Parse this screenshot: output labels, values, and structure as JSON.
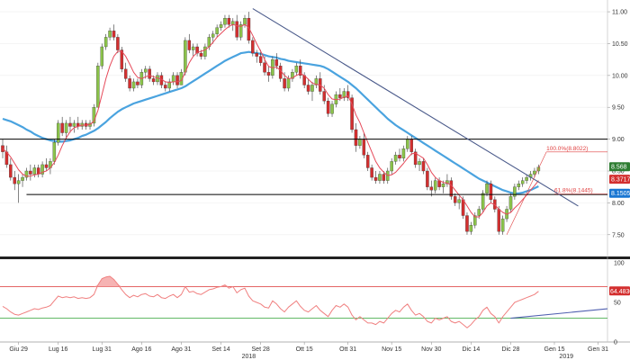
{
  "chart_data": {
    "type": "candlestick",
    "colors": {
      "up": "#8bc34a",
      "down": "#d32f2f",
      "ma_short": "#e64a5a",
      "ma_long": "#4aa3df",
      "rsi": "#f08080",
      "rsi_upper": "#e05050",
      "rsi_lower": "#4caf50",
      "support_line": "#000000",
      "trendline": "#4a5a8a",
      "rsi_trendline": "#5060b0",
      "badge_green": "#2e7d32",
      "badge_red": "#d32f2f",
      "badge_blue": "#1976d2"
    },
    "price_ylim": [
      7.2,
      11.1
    ],
    "price_ticks": [
      "11.00",
      "10.50",
      "10.00",
      "9.50",
      "9.00",
      "8.50",
      "8.00",
      "7.50"
    ],
    "price_tick_values": [
      11.0,
      10.5,
      10.0,
      9.5,
      9.0,
      8.5,
      8.0,
      7.5
    ],
    "rsi_ticks": [
      "100",
      "50",
      "0"
    ],
    "rsi_tick_values": [
      100,
      50,
      0
    ],
    "x_ticks": [
      "Giu 29",
      "Lug 16",
      "Lug 31",
      "Ago 16",
      "Ago 31",
      "Set 14",
      "Set 28",
      "Ott 15",
      "Ott 31",
      "Nov 15",
      "Nov 30",
      "Dic 14",
      "Dic 28",
      "Gen 15",
      "Gen 31"
    ],
    "x_tick_index": [
      4,
      14,
      25,
      35,
      45,
      55,
      65,
      76,
      87,
      98,
      108,
      118,
      128,
      139,
      150
    ],
    "year_labels": [
      {
        "label": "2018",
        "index": 62
      },
      {
        "label": "2019",
        "index": 142
      }
    ],
    "ohlc": [
      [
        8.9,
        9.0,
        8.7,
        8.8
      ],
      [
        8.8,
        8.9,
        8.55,
        8.6
      ],
      [
        8.6,
        8.7,
        8.35,
        8.4
      ],
      [
        8.4,
        8.5,
        8.2,
        8.3
      ],
      [
        8.3,
        8.45,
        8.0,
        8.35
      ],
      [
        8.35,
        8.45,
        8.25,
        8.4
      ],
      [
        8.4,
        8.55,
        8.35,
        8.5
      ],
      [
        8.5,
        8.6,
        8.35,
        8.45
      ],
      [
        8.45,
        8.6,
        8.4,
        8.55
      ],
      [
        8.55,
        8.6,
        8.4,
        8.45
      ],
      [
        8.45,
        8.65,
        8.4,
        8.6
      ],
      [
        8.6,
        8.7,
        8.5,
        8.55
      ],
      [
        8.55,
        8.7,
        8.45,
        8.65
      ],
      [
        8.65,
        9.0,
        8.6,
        8.95
      ],
      [
        8.95,
        9.3,
        8.9,
        9.25
      ],
      [
        9.25,
        9.35,
        9.05,
        9.1
      ],
      [
        9.1,
        9.3,
        9.0,
        9.25
      ],
      [
        9.25,
        9.35,
        9.1,
        9.2
      ],
      [
        9.2,
        9.3,
        9.1,
        9.25
      ],
      [
        9.25,
        9.35,
        9.15,
        9.2
      ],
      [
        9.2,
        9.3,
        9.15,
        9.25
      ],
      [
        9.25,
        9.3,
        9.15,
        9.2
      ],
      [
        9.2,
        9.3,
        9.15,
        9.25
      ],
      [
        9.25,
        9.55,
        9.2,
        9.5
      ],
      [
        9.5,
        10.2,
        9.5,
        10.15
      ],
      [
        10.15,
        10.5,
        10.1,
        10.45
      ],
      [
        10.45,
        10.65,
        10.4,
        10.6
      ],
      [
        10.6,
        10.75,
        10.55,
        10.7
      ],
      [
        10.7,
        10.8,
        10.55,
        10.6
      ],
      [
        10.6,
        10.65,
        10.35,
        10.4
      ],
      [
        10.4,
        10.45,
        10.05,
        10.1
      ],
      [
        10.1,
        10.2,
        9.9,
        9.95
      ],
      [
        9.95,
        10.0,
        9.75,
        9.8
      ],
      [
        9.8,
        9.95,
        9.75,
        9.9
      ],
      [
        9.9,
        9.95,
        9.8,
        9.85
      ],
      [
        9.85,
        10.1,
        9.8,
        10.05
      ],
      [
        10.05,
        10.15,
        9.95,
        10.1
      ],
      [
        10.1,
        10.15,
        9.9,
        9.95
      ],
      [
        9.95,
        10.0,
        9.85,
        9.9
      ],
      [
        9.9,
        10.05,
        9.85,
        10.0
      ],
      [
        10.0,
        10.05,
        9.8,
        9.85
      ],
      [
        9.85,
        9.9,
        9.75,
        9.8
      ],
      [
        9.8,
        9.95,
        9.75,
        9.9
      ],
      [
        9.9,
        10.05,
        9.85,
        10.0
      ],
      [
        10.0,
        10.05,
        9.8,
        9.85
      ],
      [
        9.85,
        10.1,
        9.85,
        10.05
      ],
      [
        10.05,
        10.6,
        10.0,
        10.55
      ],
      [
        10.55,
        10.65,
        10.35,
        10.4
      ],
      [
        10.4,
        10.5,
        10.3,
        10.45
      ],
      [
        10.45,
        10.5,
        10.3,
        10.35
      ],
      [
        10.35,
        10.4,
        10.25,
        10.3
      ],
      [
        10.3,
        10.5,
        10.25,
        10.45
      ],
      [
        10.45,
        10.65,
        10.4,
        10.6
      ],
      [
        10.6,
        10.7,
        10.5,
        10.65
      ],
      [
        10.65,
        10.8,
        10.6,
        10.75
      ],
      [
        10.75,
        10.85,
        10.7,
        10.8
      ],
      [
        10.8,
        10.95,
        10.75,
        10.9
      ],
      [
        10.9,
        10.95,
        10.75,
        10.8
      ],
      [
        10.8,
        10.9,
        10.7,
        10.85
      ],
      [
        10.85,
        10.95,
        10.55,
        10.6
      ],
      [
        10.6,
        10.85,
        10.55,
        10.8
      ],
      [
        10.8,
        10.95,
        10.75,
        10.9
      ],
      [
        10.9,
        11.0,
        10.5,
        10.55
      ],
      [
        10.55,
        10.6,
        10.3,
        10.35
      ],
      [
        10.35,
        10.4,
        10.2,
        10.3
      ],
      [
        10.3,
        10.4,
        10.15,
        10.2
      ],
      [
        10.2,
        10.3,
        10.0,
        10.05
      ],
      [
        10.05,
        10.15,
        9.9,
        10.0
      ],
      [
        10.0,
        10.3,
        9.95,
        10.25
      ],
      [
        10.25,
        10.35,
        10.1,
        10.15
      ],
      [
        10.15,
        10.2,
        9.9,
        9.95
      ],
      [
        9.95,
        10.05,
        9.75,
        9.8
      ],
      [
        9.8,
        10.0,
        9.75,
        9.95
      ],
      [
        9.95,
        10.1,
        9.9,
        10.05
      ],
      [
        10.05,
        10.2,
        10.0,
        10.15
      ],
      [
        10.15,
        10.25,
        9.95,
        10.0
      ],
      [
        10.0,
        10.05,
        9.8,
        9.85
      ],
      [
        9.85,
        9.95,
        9.7,
        9.75
      ],
      [
        9.75,
        9.9,
        9.6,
        9.85
      ],
      [
        9.85,
        10.0,
        9.8,
        9.95
      ],
      [
        9.95,
        10.05,
        9.7,
        9.75
      ],
      [
        9.75,
        9.85,
        9.55,
        9.6
      ],
      [
        9.6,
        9.65,
        9.35,
        9.4
      ],
      [
        9.4,
        9.6,
        9.35,
        9.55
      ],
      [
        9.55,
        9.75,
        9.5,
        9.7
      ],
      [
        9.7,
        9.8,
        9.6,
        9.65
      ],
      [
        9.65,
        9.8,
        9.6,
        9.75
      ],
      [
        9.75,
        9.85,
        9.6,
        9.65
      ],
      [
        9.65,
        9.7,
        9.1,
        9.15
      ],
      [
        9.15,
        9.25,
        8.8,
        8.9
      ],
      [
        8.9,
        9.05,
        8.85,
        9.0
      ],
      [
        9.0,
        9.1,
        8.7,
        8.75
      ],
      [
        8.75,
        8.8,
        8.5,
        8.55
      ],
      [
        8.55,
        8.6,
        8.35,
        8.4
      ],
      [
        8.4,
        8.5,
        8.3,
        8.35
      ],
      [
        8.35,
        8.5,
        8.3,
        8.45
      ],
      [
        8.45,
        8.5,
        8.3,
        8.35
      ],
      [
        8.35,
        8.55,
        8.3,
        8.5
      ],
      [
        8.5,
        8.7,
        8.45,
        8.65
      ],
      [
        8.65,
        8.8,
        8.6,
        8.75
      ],
      [
        8.75,
        8.85,
        8.65,
        8.7
      ],
      [
        8.7,
        8.9,
        8.65,
        8.85
      ],
      [
        8.85,
        9.05,
        8.8,
        9.0
      ],
      [
        9.0,
        9.05,
        8.75,
        8.8
      ],
      [
        8.8,
        8.85,
        8.55,
        8.6
      ],
      [
        8.6,
        8.7,
        8.5,
        8.65
      ],
      [
        8.65,
        8.7,
        8.45,
        8.5
      ],
      [
        8.5,
        8.55,
        8.2,
        8.25
      ],
      [
        8.25,
        8.35,
        8.1,
        8.2
      ],
      [
        8.2,
        8.4,
        8.15,
        8.35
      ],
      [
        8.35,
        8.4,
        8.2,
        8.25
      ],
      [
        8.25,
        8.35,
        8.15,
        8.3
      ],
      [
        8.3,
        8.45,
        8.25,
        8.35
      ],
      [
        8.35,
        8.4,
        8.05,
        8.1
      ],
      [
        8.1,
        8.15,
        7.95,
        8.0
      ],
      [
        8.0,
        8.1,
        7.9,
        8.05
      ],
      [
        8.05,
        8.1,
        7.75,
        7.8
      ],
      [
        7.8,
        7.85,
        7.5,
        7.55
      ],
      [
        7.55,
        7.7,
        7.5,
        7.65
      ],
      [
        7.65,
        7.85,
        7.6,
        7.8
      ],
      [
        7.8,
        7.95,
        7.75,
        7.9
      ],
      [
        7.9,
        8.2,
        7.85,
        8.15
      ],
      [
        8.15,
        8.35,
        8.1,
        8.3
      ],
      [
        8.3,
        8.35,
        8.0,
        8.05
      ],
      [
        8.05,
        8.1,
        7.85,
        7.9
      ],
      [
        7.9,
        7.95,
        7.5,
        7.55
      ],
      [
        7.55,
        7.8,
        7.5,
        7.75
      ],
      [
        7.75,
        7.95,
        7.7,
        7.9
      ],
      [
        7.9,
        8.15,
        7.85,
        8.1
      ],
      [
        8.1,
        8.3,
        8.05,
        8.25
      ],
      [
        8.25,
        8.35,
        8.2,
        8.3
      ],
      [
        8.3,
        8.4,
        8.25,
        8.35
      ],
      [
        8.35,
        8.45,
        8.3,
        8.4
      ],
      [
        8.4,
        8.5,
        8.35,
        8.45
      ],
      [
        8.45,
        8.55,
        8.4,
        8.5
      ],
      [
        8.5,
        8.6,
        8.45,
        8.56
      ]
    ],
    "ma_short": [
      8.85,
      8.8,
      8.72,
      8.62,
      8.52,
      8.45,
      8.42,
      8.42,
      8.44,
      8.45,
      8.48,
      8.5,
      8.55,
      8.63,
      8.75,
      8.9,
      9.02,
      9.12,
      9.18,
      9.2,
      9.22,
      9.22,
      9.23,
      9.28,
      9.45,
      9.7,
      9.95,
      10.15,
      10.3,
      10.38,
      10.38,
      10.3,
      10.18,
      10.05,
      9.97,
      9.95,
      9.98,
      10.0,
      9.98,
      9.96,
      9.94,
      9.9,
      9.89,
      9.9,
      9.9,
      9.92,
      10.05,
      10.2,
      10.3,
      10.36,
      10.38,
      10.4,
      10.45,
      10.52,
      10.6,
      10.66,
      10.72,
      10.77,
      10.8,
      10.78,
      10.77,
      10.8,
      10.75,
      10.63,
      10.5,
      10.38,
      10.25,
      10.14,
      10.12,
      10.13,
      10.08,
      10.0,
      9.95,
      9.96,
      10.0,
      10.03,
      10.0,
      9.94,
      9.88,
      9.86,
      9.85,
      9.8,
      9.7,
      9.63,
      9.62,
      9.63,
      9.66,
      9.68,
      9.55,
      9.38,
      9.26,
      9.1,
      8.95,
      8.8,
      8.65,
      8.55,
      8.48,
      8.43,
      8.44,
      8.48,
      8.55,
      8.62,
      8.7,
      8.77,
      8.78,
      8.74,
      8.7,
      8.6,
      8.48,
      8.4,
      8.35,
      8.32,
      8.31,
      8.28,
      8.2,
      8.12,
      8.05,
      7.95,
      7.85,
      7.78,
      7.78,
      7.85,
      7.95,
      8.0,
      7.97,
      7.9,
      7.85,
      7.82,
      7.85,
      7.92,
      7.98,
      8.05,
      8.12,
      8.2,
      8.27,
      8.35
    ],
    "ma_long": [
      9.32,
      9.3,
      9.28,
      9.25,
      9.22,
      9.19,
      9.15,
      9.12,
      9.08,
      9.05,
      9.02,
      9.0,
      8.98,
      8.97,
      8.96,
      8.96,
      8.97,
      8.98,
      9.0,
      9.02,
      9.05,
      9.07,
      9.1,
      9.13,
      9.17,
      9.22,
      9.27,
      9.33,
      9.38,
      9.43,
      9.47,
      9.5,
      9.53,
      9.56,
      9.58,
      9.6,
      9.62,
      9.64,
      9.66,
      9.68,
      9.7,
      9.72,
      9.74,
      9.76,
      9.78,
      9.8,
      9.83,
      9.87,
      9.91,
      9.95,
      9.99,
      10.03,
      10.07,
      10.11,
      10.15,
      10.19,
      10.23,
      10.26,
      10.29,
      10.32,
      10.35,
      10.36,
      10.37,
      10.36,
      10.35,
      10.34,
      10.32,
      10.3,
      10.29,
      10.28,
      10.26,
      10.25,
      10.23,
      10.22,
      10.21,
      10.2,
      10.19,
      10.18,
      10.17,
      10.16,
      10.15,
      10.13,
      10.1,
      10.06,
      10.02,
      9.98,
      9.94,
      9.9,
      9.85,
      9.8,
      9.74,
      9.68,
      9.62,
      9.56,
      9.5,
      9.44,
      9.38,
      9.32,
      9.27,
      9.22,
      9.18,
      9.14,
      9.1,
      9.06,
      9.02,
      8.98,
      8.94,
      8.9,
      8.86,
      8.82,
      8.78,
      8.74,
      8.7,
      8.66,
      8.62,
      8.58,
      8.54,
      8.5,
      8.46,
      8.42,
      8.38,
      8.35,
      8.32,
      8.29,
      8.26,
      8.23,
      8.2,
      8.18,
      8.16,
      8.15,
      8.15,
      8.16,
      8.18,
      8.2,
      8.23,
      8.26
    ],
    "rsi": [
      45,
      42,
      38,
      35,
      34,
      36,
      38,
      40,
      42,
      41,
      43,
      44,
      46,
      52,
      58,
      56,
      57,
      56,
      57,
      55,
      56,
      55,
      56,
      60,
      72,
      80,
      82,
      83,
      79,
      73,
      66,
      60,
      56,
      59,
      57,
      60,
      61,
      58,
      57,
      60,
      56,
      55,
      58,
      60,
      56,
      60,
      70,
      63,
      64,
      61,
      60,
      63,
      66,
      67,
      69,
      70,
      72,
      68,
      70,
      62,
      66,
      68,
      58,
      52,
      50,
      48,
      44,
      43,
      52,
      48,
      42,
      38,
      44,
      48,
      52,
      45,
      40,
      38,
      42,
      46,
      40,
      36,
      32,
      40,
      46,
      44,
      48,
      44,
      34,
      28,
      32,
      28,
      24,
      24,
      22,
      26,
      24,
      30,
      36,
      40,
      38,
      44,
      48,
      40,
      34,
      36,
      32,
      26,
      24,
      30,
      28,
      30,
      32,
      26,
      24,
      26,
      22,
      18,
      22,
      28,
      32,
      40,
      44,
      36,
      32,
      24,
      32,
      38,
      44,
      50,
      52,
      54,
      56,
      58,
      60,
      64
    ],
    "levels": {
      "upper": 9.0,
      "lower": 8.13
    },
    "trendline": {
      "start_index": 63,
      "start_value": 11.05,
      "end_index": 145,
      "end_value": 7.95
    },
    "rsi_levels": {
      "upper": 70,
      "lower": 30
    },
    "rsi_trendline": {
      "start_index": 128,
      "start_value": 30,
      "end_index": 152,
      "end_value": 42
    },
    "fib_labels": [
      {
        "label": "100.0%(8.8022)",
        "index": 137,
        "value": 8.8
      },
      {
        "label": "61.8%(8.1445)",
        "index": 139,
        "value": 8.14
      }
    ],
    "badges": [
      {
        "label": "8.568",
        "value": 8.568,
        "color_key": "badge_green"
      },
      {
        "label": "8.3717",
        "value": 8.3717,
        "color_key": "badge_red"
      },
      {
        "label": "8.1505",
        "value": 8.1505,
        "color_key": "badge_blue"
      }
    ],
    "rsi_badge": {
      "label": "64.4830",
      "value": 64.483
    }
  }
}
